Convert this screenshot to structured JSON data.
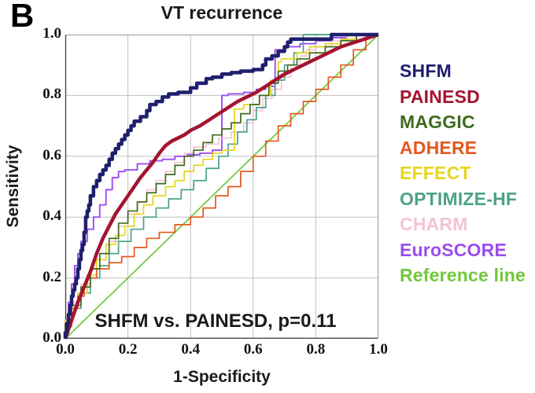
{
  "panel_label": "B",
  "title": "VT recurrence",
  "annotation": "SHFM vs. PAINESD, p=0.11",
  "axes": {
    "x_label": "1-Specificity",
    "y_label": "Sensitivity",
    "x_ticks": [
      "0.0",
      "0.2",
      "0.4",
      "0.6",
      "0.8",
      "1.0"
    ],
    "y_ticks": [
      "1.0",
      "0.8",
      "0.6",
      "0.4",
      "0.2",
      "0.0"
    ]
  },
  "colors": {
    "grid": "#c0c0c0",
    "frame": "#9a9a9a",
    "axis": "#4a4a4a",
    "text": "#1a1a1a",
    "background": "#ffffff"
  },
  "chart_data": {
    "type": "line",
    "subtype": "roc-curves",
    "title": "VT recurrence",
    "xlabel": "1-Specificity",
    "ylabel": "Sensitivity",
    "xlim": [
      0,
      1
    ],
    "ylim": [
      0,
      1
    ],
    "grid": true,
    "grid_step": 0.2,
    "legend_position": "right-outside",
    "annotation": "SHFM vs. PAINESD, p=0.11",
    "series": [
      {
        "name": "SHFM",
        "color": "#1f1f6e",
        "width": 4.5,
        "step": true,
        "points": [
          [
            0,
            0
          ],
          [
            0.005,
            0.02
          ],
          [
            0.01,
            0.05
          ],
          [
            0.015,
            0.08
          ],
          [
            0.02,
            0.11
          ],
          [
            0.025,
            0.14
          ],
          [
            0.03,
            0.16
          ],
          [
            0.035,
            0.18
          ],
          [
            0.04,
            0.2
          ],
          [
            0.045,
            0.23
          ],
          [
            0.05,
            0.26
          ],
          [
            0.055,
            0.29
          ],
          [
            0.06,
            0.31
          ],
          [
            0.065,
            0.35
          ],
          [
            0.07,
            0.4
          ],
          [
            0.075,
            0.42
          ],
          [
            0.08,
            0.44
          ],
          [
            0.09,
            0.47
          ],
          [
            0.1,
            0.5
          ],
          [
            0.11,
            0.52
          ],
          [
            0.12,
            0.54
          ],
          [
            0.13,
            0.555
          ],
          [
            0.14,
            0.57
          ],
          [
            0.15,
            0.59
          ],
          [
            0.16,
            0.61
          ],
          [
            0.17,
            0.625
          ],
          [
            0.18,
            0.64
          ],
          [
            0.19,
            0.655
          ],
          [
            0.2,
            0.67
          ],
          [
            0.21,
            0.685
          ],
          [
            0.22,
            0.7
          ],
          [
            0.24,
            0.715
          ],
          [
            0.26,
            0.73
          ],
          [
            0.27,
            0.75
          ],
          [
            0.29,
            0.77
          ],
          [
            0.31,
            0.78
          ],
          [
            0.33,
            0.795
          ],
          [
            0.36,
            0.805
          ],
          [
            0.4,
            0.81
          ],
          [
            0.42,
            0.825
          ],
          [
            0.45,
            0.84
          ],
          [
            0.47,
            0.855
          ],
          [
            0.5,
            0.86
          ],
          [
            0.53,
            0.87
          ],
          [
            0.56,
            0.875
          ],
          [
            0.6,
            0.88
          ],
          [
            0.63,
            0.885
          ],
          [
            0.64,
            0.9
          ],
          [
            0.66,
            0.92
          ],
          [
            0.68,
            0.93
          ],
          [
            0.7,
            0.945
          ],
          [
            0.71,
            0.96
          ],
          [
            0.72,
            0.975
          ],
          [
            0.74,
            0.985
          ],
          [
            0.85,
            0.985
          ],
          [
            0.87,
            1.0
          ],
          [
            1.0,
            1.0
          ]
        ]
      },
      {
        "name": "PAINESD",
        "color": "#a41430",
        "width": 4.5,
        "step": false,
        "points": [
          [
            0,
            0
          ],
          [
            0.01,
            0.03
          ],
          [
            0.02,
            0.06
          ],
          [
            0.03,
            0.09
          ],
          [
            0.04,
            0.12
          ],
          [
            0.05,
            0.145
          ],
          [
            0.06,
            0.17
          ],
          [
            0.07,
            0.195
          ],
          [
            0.08,
            0.22
          ],
          [
            0.09,
            0.25
          ],
          [
            0.1,
            0.28
          ],
          [
            0.11,
            0.305
          ],
          [
            0.12,
            0.33
          ],
          [
            0.13,
            0.35
          ],
          [
            0.14,
            0.37
          ],
          [
            0.15,
            0.39
          ],
          [
            0.16,
            0.41
          ],
          [
            0.17,
            0.425
          ],
          [
            0.18,
            0.44
          ],
          [
            0.2,
            0.47
          ],
          [
            0.22,
            0.5
          ],
          [
            0.24,
            0.53
          ],
          [
            0.26,
            0.555
          ],
          [
            0.28,
            0.58
          ],
          [
            0.3,
            0.61
          ],
          [
            0.32,
            0.635
          ],
          [
            0.34,
            0.65
          ],
          [
            0.36,
            0.66
          ],
          [
            0.38,
            0.67
          ],
          [
            0.4,
            0.685
          ],
          [
            0.43,
            0.7
          ],
          [
            0.46,
            0.72
          ],
          [
            0.49,
            0.74
          ],
          [
            0.52,
            0.76
          ],
          [
            0.55,
            0.78
          ],
          [
            0.58,
            0.795
          ],
          [
            0.61,
            0.81
          ],
          [
            0.64,
            0.83
          ],
          [
            0.67,
            0.85
          ],
          [
            0.7,
            0.87
          ],
          [
            0.73,
            0.885
          ],
          [
            0.76,
            0.9
          ],
          [
            0.79,
            0.915
          ],
          [
            0.82,
            0.93
          ],
          [
            0.85,
            0.945
          ],
          [
            0.88,
            0.96
          ],
          [
            0.91,
            0.97
          ],
          [
            0.94,
            0.98
          ],
          [
            0.97,
            0.99
          ],
          [
            1.0,
            1.0
          ]
        ]
      },
      {
        "name": "MAGGIC",
        "color": "#3f6b1d",
        "width": 1.7,
        "step": true,
        "points": [
          [
            0,
            0
          ],
          [
            0.02,
            0.05
          ],
          [
            0.05,
            0.11
          ],
          [
            0.08,
            0.17
          ],
          [
            0.11,
            0.23
          ],
          [
            0.14,
            0.28
          ],
          [
            0.17,
            0.33
          ],
          [
            0.2,
            0.38
          ],
          [
            0.23,
            0.42
          ],
          [
            0.26,
            0.45
          ],
          [
            0.29,
            0.48
          ],
          [
            0.32,
            0.51
          ],
          [
            0.35,
            0.54
          ],
          [
            0.38,
            0.57
          ],
          [
            0.41,
            0.6
          ],
          [
            0.44,
            0.62
          ],
          [
            0.47,
            0.645
          ],
          [
            0.5,
            0.67
          ],
          [
            0.53,
            0.69
          ],
          [
            0.56,
            0.71
          ],
          [
            0.59,
            0.74
          ],
          [
            0.62,
            0.77
          ],
          [
            0.65,
            0.8
          ],
          [
            0.68,
            0.84
          ],
          [
            0.71,
            0.88
          ],
          [
            0.74,
            0.9
          ],
          [
            0.78,
            0.92
          ],
          [
            0.83,
            0.94
          ],
          [
            0.88,
            0.96
          ],
          [
            0.93,
            0.98
          ],
          [
            1.0,
            1.0
          ]
        ]
      },
      {
        "name": "ADHERE",
        "color": "#e4581f",
        "width": 1.7,
        "step": true,
        "points": [
          [
            0,
            0
          ],
          [
            0.02,
            0.05
          ],
          [
            0.04,
            0.1
          ],
          [
            0.06,
            0.14
          ],
          [
            0.08,
            0.17
          ],
          [
            0.1,
            0.2
          ],
          [
            0.14,
            0.23
          ],
          [
            0.18,
            0.25
          ],
          [
            0.22,
            0.27
          ],
          [
            0.26,
            0.3
          ],
          [
            0.3,
            0.33
          ],
          [
            0.35,
            0.35
          ],
          [
            0.4,
            0.375
          ],
          [
            0.44,
            0.4
          ],
          [
            0.48,
            0.43
          ],
          [
            0.52,
            0.47
          ],
          [
            0.56,
            0.5
          ],
          [
            0.6,
            0.55
          ],
          [
            0.64,
            0.6
          ],
          [
            0.68,
            0.65
          ],
          [
            0.72,
            0.7
          ],
          [
            0.76,
            0.74
          ],
          [
            0.8,
            0.78
          ],
          [
            0.84,
            0.82
          ],
          [
            0.88,
            0.86
          ],
          [
            0.92,
            0.9
          ],
          [
            0.96,
            0.95
          ],
          [
            1.0,
            1.0
          ]
        ]
      },
      {
        "name": "EFFECT",
        "color": "#e5d61d",
        "width": 1.7,
        "step": true,
        "points": [
          [
            0,
            0
          ],
          [
            0.02,
            0.06
          ],
          [
            0.04,
            0.1
          ],
          [
            0.07,
            0.15
          ],
          [
            0.1,
            0.21
          ],
          [
            0.13,
            0.26
          ],
          [
            0.16,
            0.31
          ],
          [
            0.19,
            0.34
          ],
          [
            0.22,
            0.37
          ],
          [
            0.25,
            0.41
          ],
          [
            0.28,
            0.44
          ],
          [
            0.32,
            0.47
          ],
          [
            0.35,
            0.5
          ],
          [
            0.38,
            0.52
          ],
          [
            0.41,
            0.55
          ],
          [
            0.44,
            0.57
          ],
          [
            0.47,
            0.59
          ],
          [
            0.5,
            0.61
          ],
          [
            0.54,
            0.62
          ],
          [
            0.57,
            0.755
          ],
          [
            0.62,
            0.77
          ],
          [
            0.655,
            0.8
          ],
          [
            0.68,
            0.85
          ],
          [
            0.69,
            0.91
          ],
          [
            0.74,
            0.92
          ],
          [
            0.78,
            0.94
          ],
          [
            0.83,
            0.96
          ],
          [
            0.88,
            0.97
          ],
          [
            0.93,
            0.985
          ],
          [
            1.0,
            1.0
          ]
        ]
      },
      {
        "name": "OPTIMIZE-HF",
        "color": "#4ba289",
        "width": 1.7,
        "step": true,
        "points": [
          [
            0,
            0
          ],
          [
            0.02,
            0.04
          ],
          [
            0.05,
            0.1
          ],
          [
            0.08,
            0.15
          ],
          [
            0.11,
            0.2
          ],
          [
            0.14,
            0.24
          ],
          [
            0.17,
            0.28
          ],
          [
            0.21,
            0.32
          ],
          [
            0.25,
            0.36
          ],
          [
            0.29,
            0.4
          ],
          [
            0.33,
            0.43
          ],
          [
            0.37,
            0.46
          ],
          [
            0.41,
            0.49
          ],
          [
            0.45,
            0.52
          ],
          [
            0.49,
            0.56
          ],
          [
            0.52,
            0.6
          ],
          [
            0.55,
            0.64
          ],
          [
            0.58,
            0.68
          ],
          [
            0.61,
            0.72
          ],
          [
            0.64,
            0.76
          ],
          [
            0.67,
            0.8
          ],
          [
            0.7,
            0.85
          ],
          [
            0.73,
            0.9
          ],
          [
            0.76,
            0.94
          ],
          [
            0.79,
            1.0
          ],
          [
            1.0,
            1.0
          ]
        ]
      },
      {
        "name": "CHARM",
        "color": "#f4c3d8",
        "width": 1.7,
        "step": true,
        "points": [
          [
            0,
            0
          ],
          [
            0.02,
            0.06
          ],
          [
            0.05,
            0.12
          ],
          [
            0.08,
            0.18
          ],
          [
            0.11,
            0.23
          ],
          [
            0.14,
            0.28
          ],
          [
            0.17,
            0.32
          ],
          [
            0.2,
            0.37
          ],
          [
            0.23,
            0.41
          ],
          [
            0.26,
            0.45
          ],
          [
            0.29,
            0.49
          ],
          [
            0.32,
            0.52
          ],
          [
            0.35,
            0.55
          ],
          [
            0.38,
            0.58
          ],
          [
            0.41,
            0.61
          ],
          [
            0.45,
            0.63
          ],
          [
            0.49,
            0.64
          ],
          [
            0.53,
            0.66
          ],
          [
            0.57,
            0.68
          ],
          [
            0.6,
            0.71
          ],
          [
            0.63,
            0.75
          ],
          [
            0.66,
            0.79
          ],
          [
            0.69,
            0.82
          ],
          [
            0.72,
            0.86
          ],
          [
            0.75,
            0.9
          ],
          [
            0.77,
            0.93
          ],
          [
            0.8,
            0.95
          ],
          [
            0.85,
            0.96
          ],
          [
            0.9,
            0.98
          ],
          [
            1.0,
            1.0
          ]
        ]
      },
      {
        "name": "EuroSCORE",
        "color": "#9b4cf0",
        "width": 1.9,
        "step": true,
        "points": [
          [
            0,
            0
          ],
          [
            0.01,
            0.06
          ],
          [
            0.02,
            0.12
          ],
          [
            0.03,
            0.18
          ],
          [
            0.04,
            0.24
          ],
          [
            0.05,
            0.28
          ],
          [
            0.07,
            0.32
          ],
          [
            0.09,
            0.36
          ],
          [
            0.11,
            0.4
          ],
          [
            0.13,
            0.44
          ],
          [
            0.15,
            0.49
          ],
          [
            0.17,
            0.53
          ],
          [
            0.19,
            0.55
          ],
          [
            0.23,
            0.555
          ],
          [
            0.27,
            0.575
          ],
          [
            0.31,
            0.585
          ],
          [
            0.35,
            0.59
          ],
          [
            0.39,
            0.6
          ],
          [
            0.43,
            0.605
          ],
          [
            0.47,
            0.61
          ],
          [
            0.5,
            0.62
          ],
          [
            0.52,
            0.8
          ],
          [
            0.57,
            0.805
          ],
          [
            0.61,
            0.81
          ],
          [
            0.64,
            0.82
          ],
          [
            0.67,
            0.83
          ],
          [
            0.7,
            0.95
          ],
          [
            0.75,
            0.96
          ],
          [
            0.8,
            0.97
          ],
          [
            0.85,
            0.98
          ],
          [
            0.9,
            0.99
          ],
          [
            1.0,
            1.0
          ]
        ]
      },
      {
        "name": "Reference line",
        "color": "#6ec83a",
        "width": 1.7,
        "step": false,
        "points": [
          [
            0,
            0
          ],
          [
            1,
            1
          ]
        ]
      }
    ]
  }
}
